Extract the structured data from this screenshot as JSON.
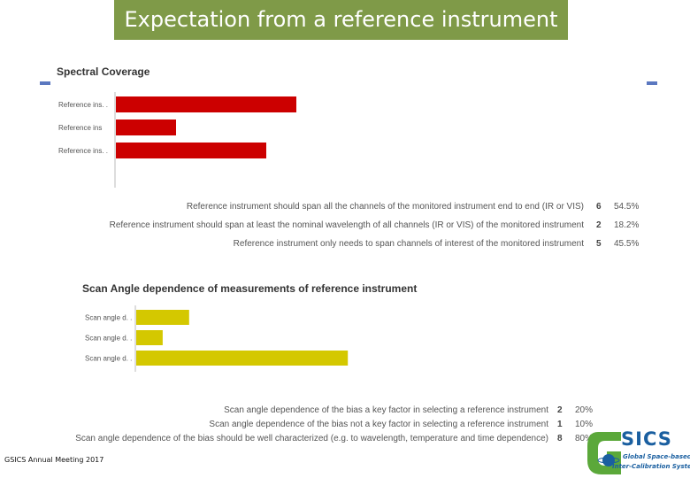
{
  "slide": {
    "title": "Expectation from a reference instrument",
    "footer": "GSICS Annual Meeting 2017"
  },
  "logo": {
    "name": "SICS",
    "line1": "Global Space-based",
    "line2": "Inter-Calibration System"
  },
  "colors": {
    "title_bg": "#7f9a48",
    "bar_red": "#cc0000",
    "bar_yellow": "#d4c800",
    "marker": "#5b78c0",
    "logo_blue": "#1a5fa0",
    "logo_green": "#5ba83a"
  },
  "chart_data": [
    {
      "type": "bar",
      "orientation": "horizontal",
      "title": "Spectral Coverage",
      "categories": [
        "Reference ins. .",
        "Reference ins",
        "Reference ins. ."
      ],
      "values": [
        6,
        2,
        5
      ],
      "xlim": [
        0,
        8
      ],
      "color": "#cc0000",
      "responses": [
        {
          "text": "Reference instrument should span all the channels of the monitored instrument end to end (IR or VIS)",
          "count": "6",
          "percent": "54.5%"
        },
        {
          "text": "Reference instrument should span at least the nominal wavelength of all channels (IR or VIS) of the monitored instrument",
          "count": "2",
          "percent": "18.2%"
        },
        {
          "text": "Reference instrument only needs to span channels of interest of the monitored instrument",
          "count": "5",
          "percent": "45.5%"
        }
      ]
    },
    {
      "type": "bar",
      "orientation": "horizontal",
      "title": "Scan Angle dependence of measurements of reference instrument",
      "categories": [
        "Scan angle d. .",
        "Scan angle d. .",
        "Scan angle d. ."
      ],
      "values": [
        2,
        1,
        8
      ],
      "xlim": [
        0,
        8
      ],
      "color": "#d4c800",
      "responses": [
        {
          "text": "Scan angle dependence of the bias a key factor in selecting a reference instrument",
          "count": "2",
          "percent": "20%"
        },
        {
          "text": "Scan angle dependence of the bias not a key factor in selecting a reference instrument",
          "count": "1",
          "percent": "10%"
        },
        {
          "text": "Scan angle dependence of the bias should be well characterized (e.g. to wavelength, temperature and time dependence)",
          "count": "8",
          "percent": "80%"
        }
      ]
    }
  ]
}
